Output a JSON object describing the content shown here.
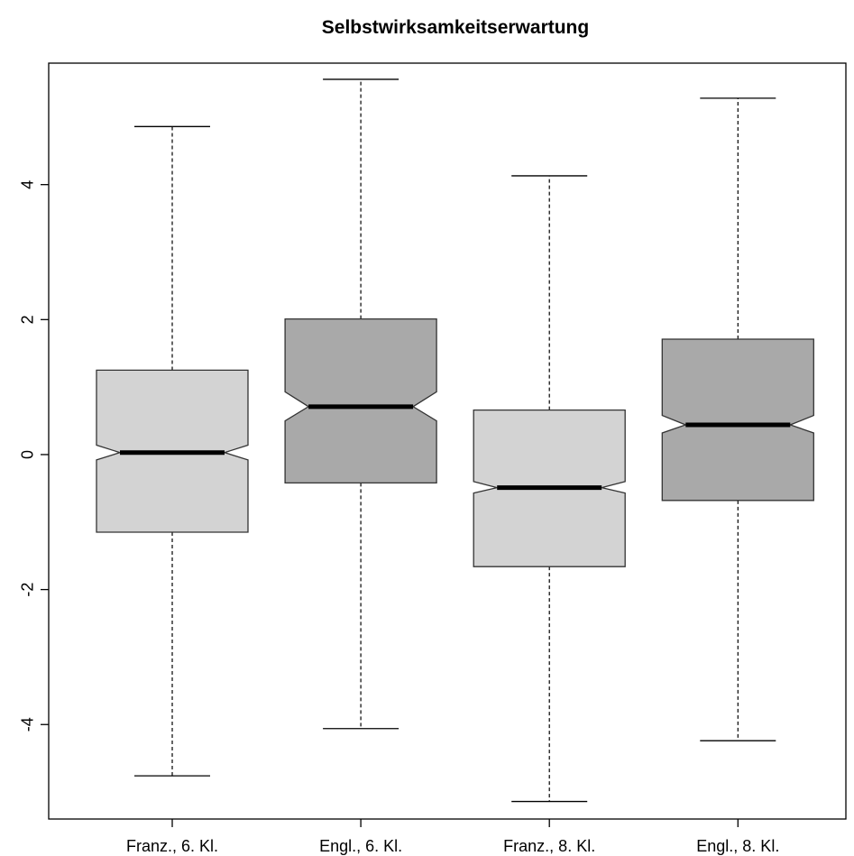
{
  "chart_data": {
    "type": "boxplot",
    "title": "Selbstwirksamkeitserwartung",
    "xlabel": "",
    "ylabel": "",
    "ylim": [
      -5.4,
      5.8
    ],
    "y_ticks": [
      -4,
      -2,
      0,
      2,
      4
    ],
    "y_tick_labels": [
      "-4",
      "-2",
      "0",
      "2",
      "4"
    ],
    "grid": false,
    "notched": true,
    "categories": [
      "Franz., 6. Kl.",
      "Engl., 6. Kl.",
      "Franz., 8. Kl.",
      "Engl., 8. Kl."
    ],
    "boxes": [
      {
        "whisker_low": -4.76,
        "q1": -1.15,
        "median": 0.03,
        "q3": 1.25,
        "whisker_high": 4.86,
        "notch_low": -0.08,
        "notch_high": 0.14,
        "fill": "#d3d3d3"
      },
      {
        "whisker_low": -4.06,
        "q1": -0.42,
        "median": 0.71,
        "q3": 2.01,
        "whisker_high": 5.56,
        "notch_low": 0.5,
        "notch_high": 0.93,
        "fill": "#a9a9a9"
      },
      {
        "whisker_low": -5.14,
        "q1": -1.66,
        "median": -0.49,
        "q3": 0.66,
        "whisker_high": 4.13,
        "notch_low": -0.57,
        "notch_high": -0.4,
        "fill": "#d3d3d3"
      },
      {
        "whisker_low": -4.24,
        "q1": -0.68,
        "median": 0.44,
        "q3": 1.71,
        "whisker_high": 5.28,
        "notch_low": 0.32,
        "notch_high": 0.58,
        "fill": "#a9a9a9"
      }
    ]
  }
}
